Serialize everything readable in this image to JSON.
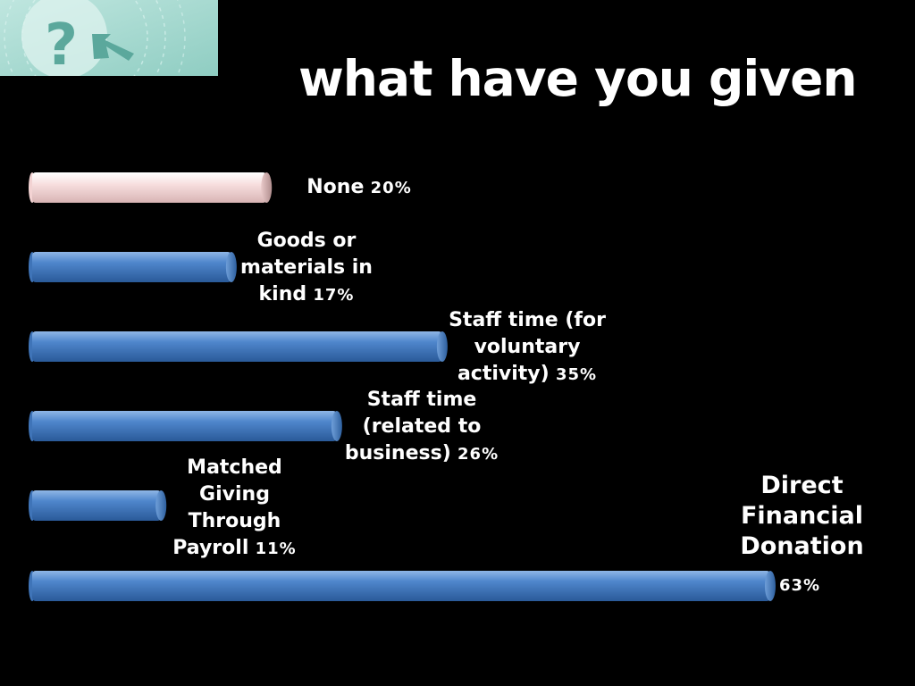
{
  "title": "what have you given",
  "logo": {
    "icon": "question-arrow-logo-icon",
    "color": "#a8d8cf"
  },
  "colors": {
    "bar_blue": "#4b86cc",
    "bar_pink": "#f6d9d9",
    "background": "#000000"
  },
  "chart_data": {
    "type": "bar",
    "orientation": "horizontal",
    "title": "what have you given",
    "xlabel": "",
    "ylabel": "",
    "xlim": [
      0,
      70
    ],
    "grid": false,
    "legend": "none",
    "categories": [
      "None",
      "Goods or materials in kind",
      "Staff time (for voluntary activity)",
      "Staff time (related to business)",
      "Matched Giving Through Payroll",
      "Direct Financial Donation"
    ],
    "values": [
      20,
      17,
      35,
      26,
      11,
      63
    ],
    "value_labels": [
      "20%",
      "17%",
      "35%",
      "26%",
      "11%",
      "63%"
    ]
  },
  "labels": [
    {
      "lines": [
        "None"
      ],
      "pct": "20%"
    },
    {
      "lines": [
        "Goods or",
        "materials in",
        "kind"
      ],
      "pct": "17%"
    },
    {
      "lines": [
        "Staff time (for",
        "voluntary",
        "activity)"
      ],
      "pct": "35%"
    },
    {
      "lines": [
        "Staff time",
        "(related to",
        "business)"
      ],
      "pct": "26%"
    },
    {
      "lines": [
        "Matched",
        "Giving",
        "Through",
        "Payroll"
      ],
      "pct": "11%"
    },
    {
      "lines": [
        "Direct",
        "Financial",
        "Donation"
      ],
      "pct": "63%"
    }
  ]
}
